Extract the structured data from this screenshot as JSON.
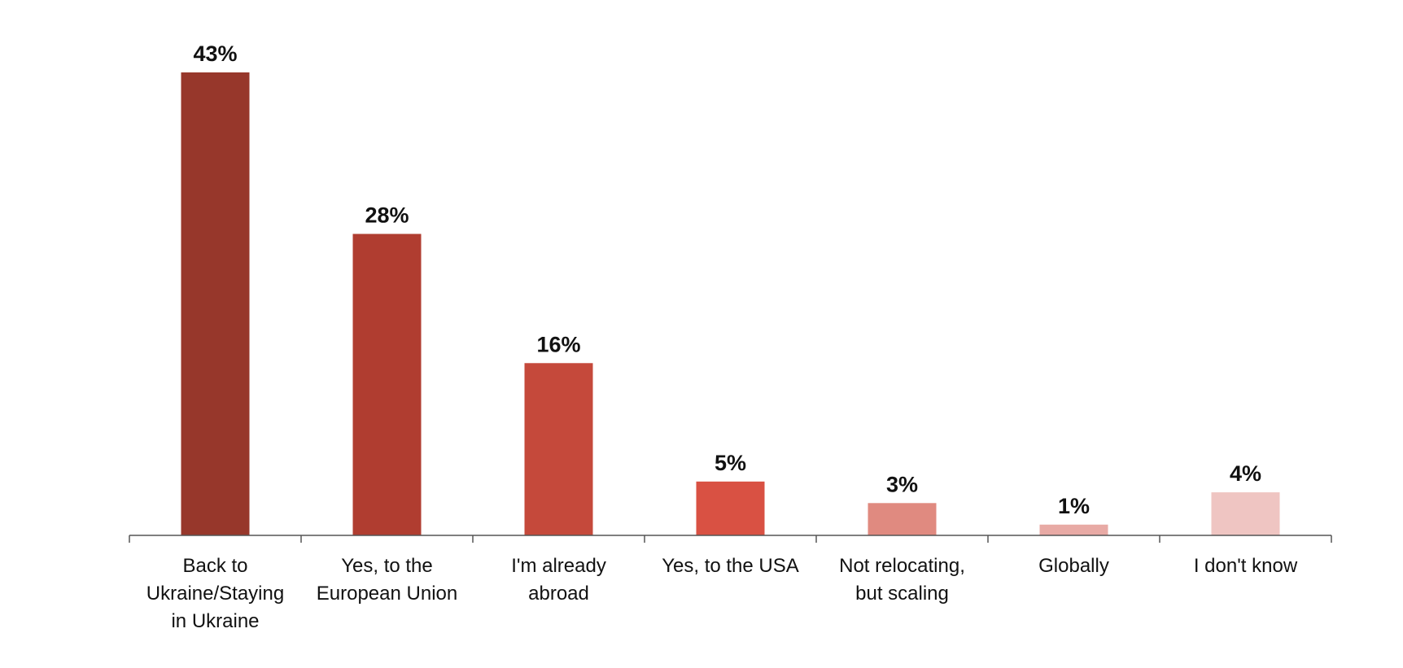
{
  "chart_data": {
    "type": "bar",
    "categories": [
      [
        "Back to",
        "Ukraine/Staying",
        "in Ukraine"
      ],
      [
        "Yes, to the",
        "European Union"
      ],
      [
        "I'm already",
        "abroad"
      ],
      [
        "Yes, to the USA"
      ],
      [
        "Not relocating,",
        "but scaling"
      ],
      [
        "Globally"
      ],
      [
        "I don't know"
      ]
    ],
    "values": [
      43,
      28,
      16,
      5,
      3,
      1,
      4
    ],
    "value_labels": [
      "43%",
      "28%",
      "16%",
      "5%",
      "3%",
      "1%",
      "4%"
    ],
    "bar_colors": [
      "#97372b",
      "#b03d30",
      "#c5493b",
      "#d95143",
      "#e08a80",
      "#e8aaa5",
      "#efc5c2"
    ],
    "axis_color": "#555555",
    "title": "",
    "xlabel": "",
    "ylabel": "",
    "ylim": [
      0,
      43
    ],
    "grid": false,
    "legend": "none"
  }
}
